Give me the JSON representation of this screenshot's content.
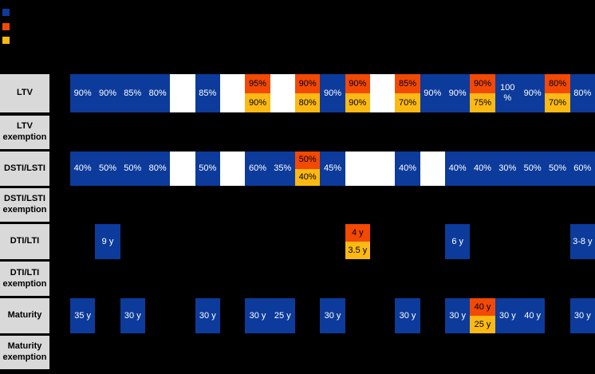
{
  "colors": {
    "background": "#000000",
    "blue": "#0c3b9b",
    "orange": "#f24905",
    "yellow": "#fdb913",
    "empty_cell": "#ffffff",
    "label_bg": "#d9d9d9",
    "label_text": "#000000",
    "text_on_blue": "#ffffff",
    "text_on_split": "#000000"
  },
  "legend": {
    "swatches": [
      {
        "name": "legend-swatch-blue",
        "color": "#0c3b9b"
      },
      {
        "name": "legend-swatch-orange",
        "color": "#f24905"
      },
      {
        "name": "legend-swatch-yellow",
        "color": "#fdb913"
      }
    ]
  },
  "chart_data": {
    "type": "table",
    "n_columns": 21,
    "legend_position": "top-left",
    "row_labels": [
      "LTV",
      "LTV exemption",
      "DSTI/LSTI",
      "DSTI/LSTI exemption",
      "DTI/LTI",
      "DTI/LTI exemption",
      "Maturity",
      "Maturity exemption"
    ],
    "rows": [
      {
        "key": "ltv",
        "label": "LTV",
        "cells": {
          "1": {
            "t": "blue",
            "v": "90%"
          },
          "2": {
            "t": "blue",
            "v": "90%"
          },
          "3": {
            "t": "blue",
            "v": "85%"
          },
          "4": {
            "t": "blue",
            "v": "80%"
          },
          "5": {
            "t": "white"
          },
          "6": {
            "t": "blue",
            "v": "85%"
          },
          "7": {
            "t": "white"
          },
          "8": {
            "t": "split",
            "top": "95%",
            "bottom": "90%"
          },
          "9": {
            "t": "white"
          },
          "10": {
            "t": "split",
            "top": "90%",
            "bottom": "80%"
          },
          "11": {
            "t": "blue",
            "v": "90%"
          },
          "12": {
            "t": "split",
            "top": "90%",
            "bottom": "90%"
          },
          "13": {
            "t": "white"
          },
          "14": {
            "t": "split",
            "top": "85%",
            "bottom": "70%"
          },
          "15": {
            "t": "blue",
            "v": "90%"
          },
          "16": {
            "t": "blue",
            "v": "90%"
          },
          "17": {
            "t": "split",
            "top": "90%",
            "bottom": "75%"
          },
          "18": {
            "t": "blue",
            "v": "100\n%"
          },
          "19": {
            "t": "blue",
            "v": "90%"
          },
          "20": {
            "t": "split",
            "top": "80%",
            "bottom": "70%"
          },
          "21": {
            "t": "blue",
            "v": "80%"
          }
        }
      },
      {
        "key": "ltv-exemption",
        "label": "LTV exemption",
        "cells": {}
      },
      {
        "key": "dsti-lsti",
        "label": "DSTI/LSTI",
        "cells": {
          "1": {
            "t": "blue",
            "v": "40%"
          },
          "2": {
            "t": "blue",
            "v": "50%"
          },
          "3": {
            "t": "blue",
            "v": "50%"
          },
          "4": {
            "t": "blue",
            "v": "80%"
          },
          "5": {
            "t": "white"
          },
          "6": {
            "t": "blue",
            "v": "50%"
          },
          "7": {
            "t": "white"
          },
          "8": {
            "t": "blue",
            "v": "60%"
          },
          "9": {
            "t": "blue",
            "v": "35%"
          },
          "10": {
            "t": "split",
            "top": "50%",
            "bottom": "40%"
          },
          "11": {
            "t": "blue",
            "v": "45%"
          },
          "12": {
            "t": "white"
          },
          "13": {
            "t": "white"
          },
          "14": {
            "t": "blue",
            "v": "40%"
          },
          "15": {
            "t": "white"
          },
          "16": {
            "t": "blue",
            "v": "40%"
          },
          "17": {
            "t": "blue",
            "v": "40%"
          },
          "18": {
            "t": "blue",
            "v": "30%"
          },
          "19": {
            "t": "blue",
            "v": "50%"
          },
          "20": {
            "t": "blue",
            "v": "50%"
          },
          "21": {
            "t": "blue",
            "v": "60%"
          }
        }
      },
      {
        "key": "dsti-lsti-exemption",
        "label": "DSTI/LSTI exemption",
        "cells": {}
      },
      {
        "key": "dti-lti",
        "label": "DTI/LTI",
        "cells": {
          "2": {
            "t": "blue",
            "v": "9 y"
          },
          "12": {
            "t": "split",
            "top": "4 y",
            "bottom": "3.5 y"
          },
          "16": {
            "t": "blue",
            "v": "6 y"
          },
          "21": {
            "t": "blue",
            "v": "3-8 y"
          }
        }
      },
      {
        "key": "dti-lti-exemption",
        "label": "DTI/LTI exemption",
        "cells": {}
      },
      {
        "key": "maturity",
        "label": "Maturity",
        "cells": {
          "1": {
            "t": "blue",
            "v": "35 y"
          },
          "3": {
            "t": "blue",
            "v": "30 y"
          },
          "6": {
            "t": "blue",
            "v": "30 y"
          },
          "8": {
            "t": "blue",
            "v": "30 y"
          },
          "9": {
            "t": "blue",
            "v": "25 y"
          },
          "11": {
            "t": "blue",
            "v": "30 y"
          },
          "14": {
            "t": "blue",
            "v": "30 y"
          },
          "16": {
            "t": "blue",
            "v": "30 y"
          },
          "17": {
            "t": "split",
            "top": "40 y",
            "bottom": "25 y"
          },
          "18": {
            "t": "blue",
            "v": "30 y"
          },
          "19": {
            "t": "blue",
            "v": "40 y"
          },
          "21": {
            "t": "blue",
            "v": "30 y"
          }
        }
      },
      {
        "key": "maturity-exemption",
        "label": "Maturity exemption",
        "cells": {}
      }
    ]
  }
}
